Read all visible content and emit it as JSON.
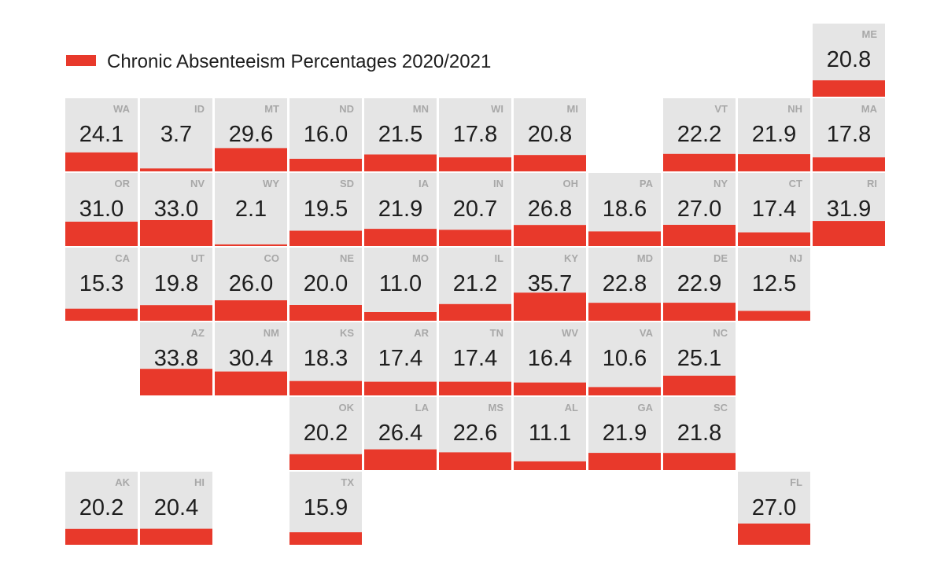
{
  "chart_data": {
    "type": "tile-map",
    "title": "",
    "legend": [
      {
        "name": "Chronic Absenteeism Percentages 2020/2021",
        "color": "#e8392b"
      }
    ],
    "bar_scale_max": 36,
    "tiles": [
      {
        "state": "ME",
        "value": 20.8,
        "row": 0,
        "col": 10
      },
      {
        "state": "WA",
        "value": 24.1,
        "row": 1,
        "col": 0
      },
      {
        "state": "ID",
        "value": 3.7,
        "row": 1,
        "col": 1
      },
      {
        "state": "MT",
        "value": 29.6,
        "row": 1,
        "col": 2
      },
      {
        "state": "ND",
        "value": 16.0,
        "row": 1,
        "col": 3
      },
      {
        "state": "MN",
        "value": 21.5,
        "row": 1,
        "col": 4
      },
      {
        "state": "WI",
        "value": 17.8,
        "row": 1,
        "col": 5
      },
      {
        "state": "MI",
        "value": 20.8,
        "row": 1,
        "col": 6
      },
      {
        "state": "VT",
        "value": 22.2,
        "row": 1,
        "col": 8
      },
      {
        "state": "NH",
        "value": 21.9,
        "row": 1,
        "col": 9
      },
      {
        "state": "MA",
        "value": 17.8,
        "row": 1,
        "col": 10
      },
      {
        "state": "OR",
        "value": 31.0,
        "row": 2,
        "col": 0
      },
      {
        "state": "NV",
        "value": 33.0,
        "row": 2,
        "col": 1
      },
      {
        "state": "WY",
        "value": 2.1,
        "row": 2,
        "col": 2
      },
      {
        "state": "SD",
        "value": 19.5,
        "row": 2,
        "col": 3
      },
      {
        "state": "IA",
        "value": 21.9,
        "row": 2,
        "col": 4
      },
      {
        "state": "IN",
        "value": 20.7,
        "row": 2,
        "col": 5
      },
      {
        "state": "OH",
        "value": 26.8,
        "row": 2,
        "col": 6
      },
      {
        "state": "PA",
        "value": 18.6,
        "row": 2,
        "col": 7
      },
      {
        "state": "NY",
        "value": 27.0,
        "row": 2,
        "col": 8
      },
      {
        "state": "CT",
        "value": 17.4,
        "row": 2,
        "col": 9
      },
      {
        "state": "RI",
        "value": 31.9,
        "row": 2,
        "col": 10
      },
      {
        "state": "CA",
        "value": 15.3,
        "row": 3,
        "col": 0
      },
      {
        "state": "UT",
        "value": 19.8,
        "row": 3,
        "col": 1
      },
      {
        "state": "CO",
        "value": 26.0,
        "row": 3,
        "col": 2
      },
      {
        "state": "NE",
        "value": 20.0,
        "row": 3,
        "col": 3
      },
      {
        "state": "MO",
        "value": 11.0,
        "row": 3,
        "col": 4
      },
      {
        "state": "IL",
        "value": 21.2,
        "row": 3,
        "col": 5
      },
      {
        "state": "KY",
        "value": 35.7,
        "row": 3,
        "col": 6
      },
      {
        "state": "MD",
        "value": 22.8,
        "row": 3,
        "col": 7
      },
      {
        "state": "DE",
        "value": 22.9,
        "row": 3,
        "col": 8
      },
      {
        "state": "NJ",
        "value": 12.5,
        "row": 3,
        "col": 9
      },
      {
        "state": "AZ",
        "value": 33.8,
        "row": 4,
        "col": 1
      },
      {
        "state": "NM",
        "value": 30.4,
        "row": 4,
        "col": 2
      },
      {
        "state": "KS",
        "value": 18.3,
        "row": 4,
        "col": 3
      },
      {
        "state": "AR",
        "value": 17.4,
        "row": 4,
        "col": 4
      },
      {
        "state": "TN",
        "value": 17.4,
        "row": 4,
        "col": 5
      },
      {
        "state": "WV",
        "value": 16.4,
        "row": 4,
        "col": 6
      },
      {
        "state": "VA",
        "value": 10.6,
        "row": 4,
        "col": 7
      },
      {
        "state": "NC",
        "value": 25.1,
        "row": 4,
        "col": 8
      },
      {
        "state": "OK",
        "value": 20.2,
        "row": 5,
        "col": 3
      },
      {
        "state": "LA",
        "value": 26.4,
        "row": 5,
        "col": 4
      },
      {
        "state": "MS",
        "value": 22.6,
        "row": 5,
        "col": 5
      },
      {
        "state": "AL",
        "value": 11.1,
        "row": 5,
        "col": 6
      },
      {
        "state": "GA",
        "value": 21.9,
        "row": 5,
        "col": 7
      },
      {
        "state": "SC",
        "value": 21.8,
        "row": 5,
        "col": 8
      },
      {
        "state": "AK",
        "value": 20.2,
        "row": 6,
        "col": 0
      },
      {
        "state": "HI",
        "value": 20.4,
        "row": 6,
        "col": 1
      },
      {
        "state": "TX",
        "value": 15.9,
        "row": 6,
        "col": 3
      },
      {
        "state": "FL",
        "value": 27.0,
        "row": 6,
        "col": 9
      }
    ]
  }
}
